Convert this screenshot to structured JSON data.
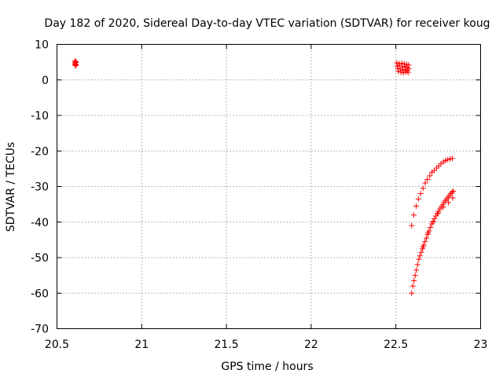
{
  "chart_data": {
    "type": "scatter",
    "title": "Day 182 of 2020, Sidereal Day-to-day VTEC variation (SDTVAR) for receiver koug",
    "xlabel": "GPS time / hours",
    "ylabel": "SDTVAR / TECUs",
    "xlim": [
      20.5,
      23
    ],
    "ylim": [
      -70,
      10
    ],
    "x_ticks": [
      20.5,
      21,
      21.5,
      22,
      22.5,
      23
    ],
    "x_tick_labels": [
      "20.5",
      "21",
      "21.5",
      "22",
      "22.5",
      "23"
    ],
    "y_ticks": [
      -70,
      -60,
      -50,
      -40,
      -30,
      -20,
      -10,
      0,
      10
    ],
    "y_tick_labels": [
      "-70",
      "-60",
      "-50",
      "-40",
      "-30",
      "-20",
      "-10",
      "0",
      "10"
    ],
    "grid": true,
    "marker": "plus",
    "color": "#ff0000",
    "series": [
      {
        "points": [
          [
            20.605,
            5.3
          ],
          [
            20.607,
            4.8
          ],
          [
            20.608,
            4.5
          ],
          [
            20.61,
            4.0
          ],
          [
            20.612,
            5.0
          ],
          [
            20.613,
            4.2
          ],
          [
            20.61,
            5.2
          ],
          [
            20.606,
            4.3
          ],
          [
            22.505,
            4.8
          ],
          [
            22.508,
            3.9
          ],
          [
            22.512,
            3.2
          ],
          [
            22.514,
            2.4
          ],
          [
            22.52,
            4.6
          ],
          [
            22.523,
            4.1
          ],
          [
            22.526,
            3.0
          ],
          [
            22.529,
            2.2
          ],
          [
            22.535,
            4.7
          ],
          [
            22.538,
            3.6
          ],
          [
            22.541,
            2.7
          ],
          [
            22.543,
            2.0
          ],
          [
            22.55,
            4.5
          ],
          [
            22.553,
            3.8
          ],
          [
            22.556,
            2.9
          ],
          [
            22.558,
            2.3
          ],
          [
            22.563,
            4.4
          ],
          [
            22.566,
            3.5
          ],
          [
            22.569,
            2.6
          ],
          [
            22.572,
            2.1
          ],
          [
            22.575,
            4.2
          ],
          [
            22.577,
            3.2
          ],
          [
            22.593,
            -41
          ],
          [
            22.606,
            -38
          ],
          [
            22.62,
            -35.5
          ],
          [
            22.633,
            -33.5
          ],
          [
            22.646,
            -32
          ],
          [
            22.66,
            -30.5
          ],
          [
            22.673,
            -29
          ],
          [
            22.686,
            -28
          ],
          [
            22.7,
            -27
          ],
          [
            22.713,
            -26
          ],
          [
            22.726,
            -25.5
          ],
          [
            22.74,
            -24.8
          ],
          [
            22.753,
            -24.2
          ],
          [
            22.766,
            -23.6
          ],
          [
            22.78,
            -23.1
          ],
          [
            22.793,
            -22.7
          ],
          [
            22.806,
            -22.4
          ],
          [
            22.82,
            -22.2
          ],
          [
            22.833,
            -22.1
          ],
          [
            22.593,
            -60
          ],
          [
            22.6,
            -58
          ],
          [
            22.607,
            -56.5
          ],
          [
            22.614,
            -55
          ],
          [
            22.621,
            -53.5
          ],
          [
            22.628,
            -52
          ],
          [
            22.635,
            -50.5
          ],
          [
            22.642,
            -49.5
          ],
          [
            22.65,
            -48.5
          ],
          [
            22.657,
            -47.5
          ],
          [
            22.664,
            -46.5
          ],
          [
            22.672,
            -45.5
          ],
          [
            22.68,
            -44.5
          ],
          [
            22.688,
            -43.5
          ],
          [
            22.696,
            -42.5
          ],
          [
            22.704,
            -41.5
          ],
          [
            22.712,
            -40.5
          ],
          [
            22.72,
            -39.8
          ],
          [
            22.728,
            -39
          ],
          [
            22.736,
            -38.3
          ],
          [
            22.744,
            -37.6
          ],
          [
            22.752,
            -37
          ],
          [
            22.76,
            -36.3
          ],
          [
            22.768,
            -35.7
          ],
          [
            22.776,
            -35.1
          ],
          [
            22.784,
            -34.5
          ],
          [
            22.792,
            -34
          ],
          [
            22.8,
            -33.5
          ],
          [
            22.808,
            -33
          ],
          [
            22.816,
            -32.5
          ],
          [
            22.824,
            -32
          ],
          [
            22.832,
            -31.6
          ],
          [
            22.838,
            -31.3
          ],
          [
            22.66,
            -47
          ],
          [
            22.69,
            -43
          ],
          [
            22.72,
            -40
          ],
          [
            22.75,
            -37.5
          ],
          [
            22.78,
            -35.8
          ],
          [
            22.81,
            -34.5
          ],
          [
            22.835,
            -33.2
          ]
        ]
      }
    ]
  }
}
